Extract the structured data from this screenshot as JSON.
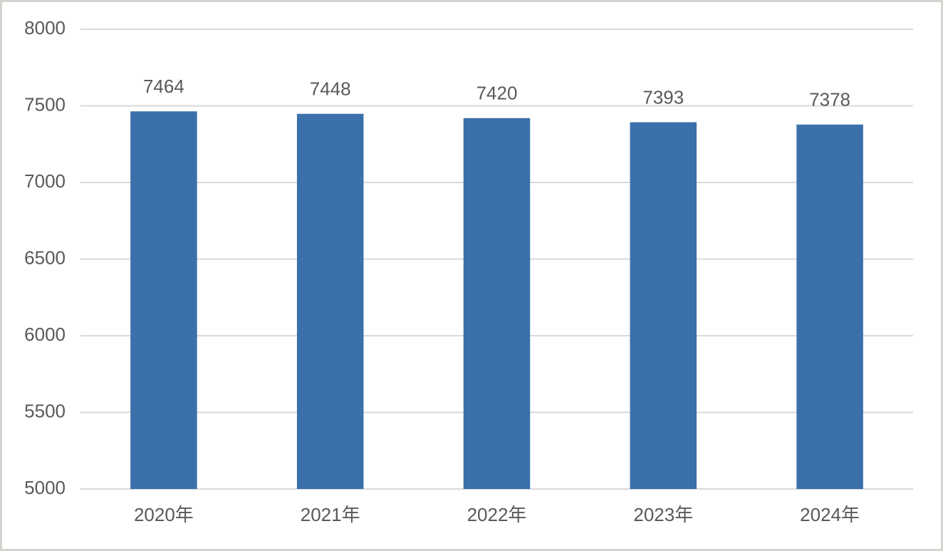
{
  "chart_data": {
    "type": "bar",
    "categories": [
      "2020年",
      "2021年",
      "2022年",
      "2023年",
      "2024年"
    ],
    "values": [
      7464,
      7448,
      7420,
      7393,
      7378
    ],
    "color": "#3b70aa",
    "ylim": [
      5000,
      8000
    ],
    "yticks": [
      5000,
      5500,
      6000,
      6500,
      7000,
      7500,
      8000
    ],
    "grid": true
  }
}
